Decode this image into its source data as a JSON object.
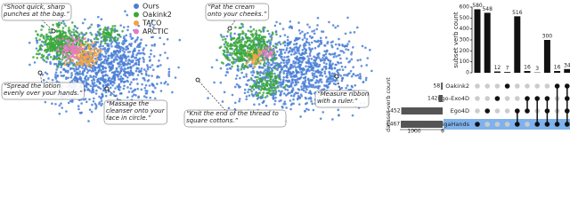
{
  "chart_data": [
    {
      "type": "scatter",
      "series": [
        {
          "name": "Ours",
          "color": "#4a7fd6"
        },
        {
          "name": "Oakink2",
          "color": "#3aa83a"
        },
        {
          "name": "TACO",
          "color": "#f2a444"
        },
        {
          "name": "ARCTIC",
          "color": "#e67ac8"
        }
      ],
      "annotations": [
        [
          "“Shoot quick, sharp",
          "punches at the bag.”"
        ],
        [
          "“Spread the lotion",
          "evenly over your hands.”"
        ],
        [
          "“Massage the",
          "cleanser onto your",
          "face in circle.”"
        ]
      ]
    },
    {
      "type": "scatter",
      "annotations": [
        [
          "“Pat the cream",
          "onto your cheeks.”"
        ],
        [
          "“Knit the end of the thread to",
          "square cottons.”"
        ],
        [
          "“Measure ribbon",
          "with a ruler.”"
        ]
      ]
    },
    {
      "type": "upset",
      "y_label": "subset verb count",
      "x_label": "dataset verb count",
      "sets": [
        "Oakink2",
        "Ego-Exo4D",
        "Ego4D",
        "GigaHands"
      ],
      "set_values": [
        58,
        142,
        1452,
        1467
      ],
      "xlim": [
        0,
        1500
      ],
      "xticks": [
        0,
        1000
      ],
      "values": [
        580,
        548,
        12,
        7,
        516,
        16,
        3,
        300,
        16,
        34
      ],
      "members": [
        [
          3
        ],
        [
          2
        ],
        [
          1
        ],
        [
          0
        ],
        [
          2,
          3
        ],
        [
          1,
          2
        ],
        [
          1,
          3
        ],
        [
          1,
          2,
          3
        ],
        [
          0,
          3
        ],
        [
          0,
          1,
          2,
          3
        ]
      ],
      "ylim": [
        0,
        600
      ],
      "yticks": [
        0,
        100,
        200,
        300,
        400,
        500,
        600
      ],
      "highlight": 3,
      "highlight_color": "#7fb2ec",
      "bar_color": "#111111"
    }
  ]
}
